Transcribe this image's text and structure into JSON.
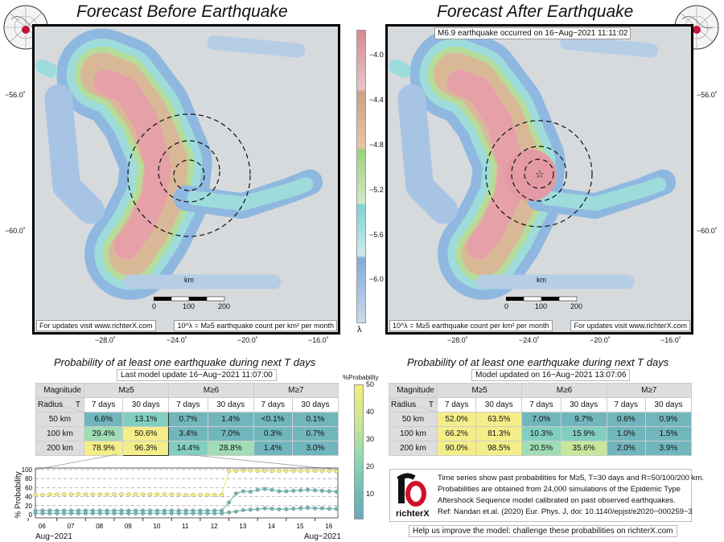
{
  "left": {
    "title": "Forecast Before Earthquake",
    "updates_note": "For updates visit www.richterX.com",
    "lambda_note": "10^λ = M≥5 earthquake count per km² per month",
    "scale": {
      "unit": "km",
      "ticks": [
        "0",
        "100",
        "200"
      ]
    },
    "lat_labels": [
      "−56.0˚",
      "−60.0˚"
    ],
    "lon_labels": [
      "−28.0˚",
      "−24.0˚",
      "−20.0˚",
      "−16.0˚"
    ],
    "prob_title": "Probability of at least one earthquake during next T days",
    "update": "Last model update 16−Aug−2021 11:07:00",
    "table": {
      "magnitude_label": "Magnitude",
      "radius_label": "Radius",
      "t_label": "T",
      "mags": [
        "M≥5",
        "M≥6",
        "M≥7"
      ],
      "periods": [
        "7 days",
        "30 days",
        "7 days",
        "30 days",
        "7 days",
        "30 days"
      ],
      "rows": [
        {
          "radius": "50 km",
          "values": [
            "6.6%",
            "13.1%",
            "0.7%",
            "1.4%",
            "<0.1%",
            "0.1%"
          ]
        },
        {
          "radius": "100 km",
          "values": [
            "29.4%",
            "50.6%",
            "3.4%",
            "7.0%",
            "0.3%",
            "0.7%"
          ]
        },
        {
          "radius": "200 km",
          "values": [
            "78.9%",
            "96.3%",
            "14.4%",
            "28.8%",
            "1.4%",
            "3.0%"
          ]
        }
      ]
    }
  },
  "right": {
    "title": "Forecast After Earthquake",
    "event_note": "M6.9 earthquake occurred on 16−Aug−2021 11:11:02",
    "updates_note": "For updates visit www.richterX.com",
    "lambda_note": "10^λ = M≥5 earthquake count per km² per month",
    "scale": {
      "unit": "km",
      "ticks": [
        "0",
        "100",
        "200"
      ]
    },
    "lat_labels": [
      "−56.0˚",
      "−60.0˚"
    ],
    "lon_labels": [
      "−28.0˚",
      "−24.0˚",
      "−20.0˚",
      "−16.0˚"
    ],
    "prob_title": "Probability of at least one earthquake during next T days",
    "update": "Model updated on 16−Aug−2021 13:07:06",
    "table": {
      "magnitude_label": "Magnitude",
      "radius_label": "Radius",
      "t_label": "T",
      "mags": [
        "M≥5",
        "M≥6",
        "M≥7"
      ],
      "periods": [
        "7 days",
        "30 days",
        "7 days",
        "30 days",
        "7 days",
        "30 days"
      ],
      "rows": [
        {
          "radius": "50 km",
          "values": [
            "52.0%",
            "63.5%",
            "7.0%",
            "9.7%",
            "0.6%",
            "0.9%"
          ]
        },
        {
          "radius": "100 km",
          "values": [
            "66.2%",
            "81.3%",
            "10.3%",
            "15.9%",
            "1.0%",
            "1.5%"
          ]
        },
        {
          "radius": "200 km",
          "values": [
            "90.0%",
            "98.5%",
            "20.5%",
            "35.6%",
            "2.0%",
            "3.9%"
          ]
        }
      ]
    }
  },
  "lambda_colorbar": {
    "ticks": [
      "−4.0",
      "−4.4",
      "−4.8",
      "−5.2",
      "−5.6",
      "−6.0"
    ],
    "label": "λ"
  },
  "prob_colorbar": {
    "title": "%Probability",
    "ticks": [
      "50",
      "40",
      "30",
      "20",
      "10"
    ]
  },
  "info": {
    "lines": [
      "Time series show past probabilities for M≥5, T=30 days and R=50/100/200 km.",
      "Probabilities are obtained from 24,000 simulations of the Epidemic Type",
      "Aftershock Sequence model calibrated on past observed earthquakes.",
      "Ref: Nandan et.al. (2020) Eur. Phys. J, doi: 10.1140/epjst/e2020−000259−3"
    ],
    "logo_text": "richterX",
    "cta": "Help us improve the model: challenge these probabilities on richterX.com"
  },
  "chart_data": {
    "type": "line",
    "ylabel": "% Probability",
    "ylim": [
      0,
      100
    ],
    "yticks": [
      "0",
      "20",
      "40",
      "60",
      "80",
      "100"
    ],
    "xlim": [
      5.75,
      16.3
    ],
    "xticks": [
      "06",
      "07",
      "08",
      "09",
      "10",
      "11",
      "12",
      "13",
      "14",
      "15",
      "16"
    ],
    "xlabel_left": "Aug−2021",
    "xlabel_right": "Aug−2021",
    "x": [
      5.75,
      6,
      6.25,
      6.5,
      6.75,
      7,
      7.25,
      7.5,
      7.75,
      8,
      8.25,
      8.5,
      8.75,
      9,
      9.25,
      9.5,
      9.75,
      10,
      10.25,
      10.5,
      10.75,
      11,
      11.25,
      11.5,
      11.75,
      12,
      12.25,
      12.5,
      12.75,
      13,
      13.25,
      13.5,
      13.75,
      14,
      14.25,
      14.5,
      14.75,
      15,
      15.25,
      15.5,
      15.75,
      16,
      16.25
    ],
    "series": [
      {
        "name": "R=200 km",
        "color": "#f2ee7a",
        "values": [
          44,
          44,
          45,
          45,
          45,
          45,
          46,
          45,
          45,
          45,
          45,
          45,
          45,
          45,
          45,
          45,
          45,
          45,
          45,
          45,
          45,
          44,
          44,
          44,
          44,
          44,
          44,
          97,
          97,
          98,
          98,
          97,
          97,
          97,
          97,
          97,
          97,
          97,
          97,
          97,
          97,
          97,
          96
        ]
      },
      {
        "name": "R=100 km",
        "color": "#6fb8b0",
        "values": [
          9,
          9,
          9,
          9,
          9,
          9,
          9,
          9,
          9,
          9,
          9,
          9,
          9,
          9,
          9,
          9,
          9,
          9,
          9,
          9,
          9,
          9,
          9,
          9,
          9,
          9,
          9,
          27,
          47,
          52,
          51,
          55,
          57,
          55,
          52,
          52,
          53,
          54,
          55,
          54,
          53,
          52,
          51
        ]
      },
      {
        "name": "R=50 km",
        "color": "#6fb8b0",
        "values": [
          3,
          3,
          3,
          3,
          3,
          3,
          3,
          3,
          3,
          3,
          3,
          3,
          3,
          3,
          3,
          3,
          3,
          3,
          3,
          3,
          3,
          3,
          3,
          3,
          3,
          3,
          3,
          5,
          7,
          10,
          11,
          12,
          14,
          13,
          12,
          12,
          13,
          14,
          15,
          14,
          14,
          13,
          13
        ]
      }
    ]
  }
}
